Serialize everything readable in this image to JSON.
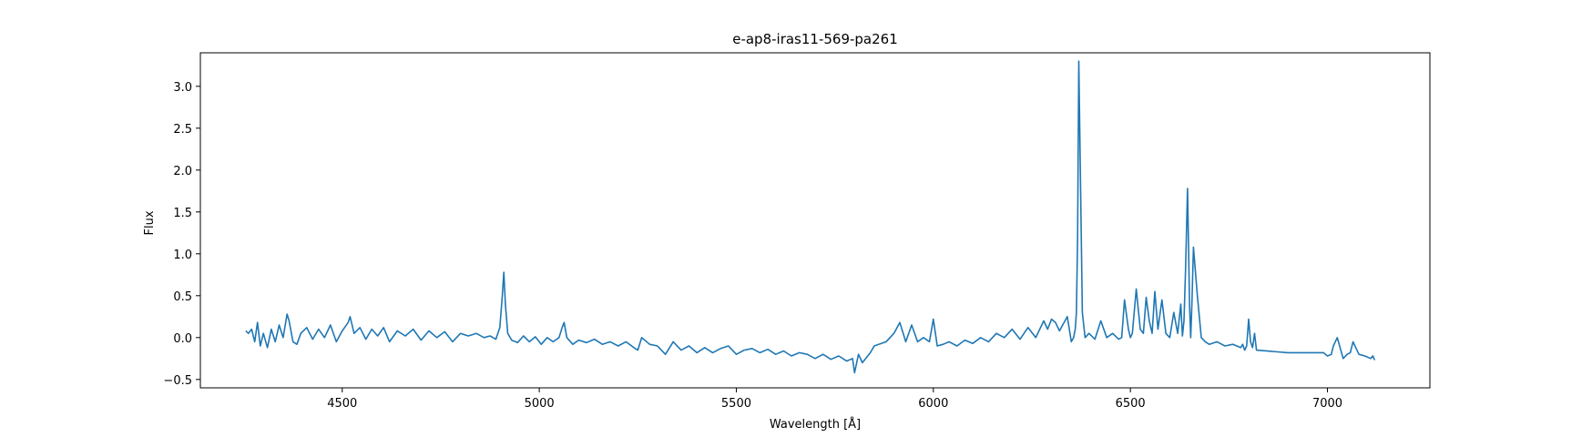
{
  "chart_data": {
    "type": "line",
    "title": "e-ap8-iras11-569-pa261",
    "xlabel": "Wavelength [Å]",
    "ylabel": "Flux",
    "xlim": [
      4140,
      7260
    ],
    "ylim": [
      -0.6,
      3.4
    ],
    "xticks": [
      4500,
      5000,
      5500,
      6000,
      6500,
      7000
    ],
    "xtick_labels": [
      "4500",
      "5000",
      "5500",
      "6000",
      "6500",
      "7000"
    ],
    "yticks": [
      -0.5,
      0.0,
      0.5,
      1.0,
      1.5,
      2.0,
      2.5,
      3.0
    ],
    "ytick_labels": [
      "−0.5",
      "0.0",
      "0.5",
      "1.0",
      "1.5",
      "2.0",
      "2.5",
      "3.0"
    ],
    "grid": false,
    "series": [
      {
        "color": "#1f77b4",
        "x": [
          4255,
          4262,
          4270,
          4278,
          4285,
          4292,
          4300,
          4310,
          4320,
          4330,
          4340,
          4350,
          4360,
          4365,
          4375,
          4385,
          4395,
          4410,
          4425,
          4440,
          4455,
          4470,
          4485,
          4500,
          4515,
          4520,
          4530,
          4545,
          4560,
          4575,
          4590,
          4605,
          4620,
          4640,
          4660,
          4680,
          4700,
          4720,
          4740,
          4760,
          4780,
          4800,
          4820,
          4840,
          4860,
          4875,
          4890,
          4900,
          4906,
          4910,
          4914,
          4920,
          4930,
          4945,
          4960,
          4975,
          4990,
          5005,
          5020,
          5035,
          5050,
          5058,
          5063,
          5070,
          5085,
          5100,
          5120,
          5140,
          5160,
          5180,
          5200,
          5220,
          5240,
          5250,
          5260,
          5280,
          5300,
          5320,
          5340,
          5360,
          5380,
          5400,
          5420,
          5440,
          5460,
          5480,
          5500,
          5520,
          5540,
          5560,
          5580,
          5600,
          5620,
          5640,
          5660,
          5680,
          5700,
          5720,
          5740,
          5760,
          5780,
          5795,
          5800,
          5810,
          5820,
          5840,
          5850,
          5880,
          5900,
          5915,
          5930,
          5945,
          5960,
          5975,
          5990,
          6000,
          6010,
          6025,
          6040,
          6060,
          6080,
          6100,
          6120,
          6140,
          6160,
          6180,
          6200,
          6220,
          6240,
          6260,
          6280,
          6290,
          6300,
          6310,
          6320,
          6340,
          6350,
          6356,
          6360,
          6363,
          6366,
          6369,
          6373,
          6378,
          6385,
          6395,
          6410,
          6425,
          6440,
          6455,
          6470,
          6478,
          6485,
          6495,
          6500,
          6505,
          6515,
          6525,
          6533,
          6540,
          6548,
          6555,
          6562,
          6570,
          6580,
          6590,
          6600,
          6610,
          6620,
          6628,
          6632,
          6636,
          6640,
          6645,
          6650,
          6653,
          6656,
          6660,
          6670,
          6680,
          6690,
          6700,
          6720,
          6740,
          6760,
          6780,
          6785,
          6790,
          6795,
          6800,
          6805,
          6810,
          6815,
          6820,
          6900,
          6990,
          7000,
          7010,
          7015,
          7025,
          7040,
          7050,
          7058,
          7065,
          7080,
          7095,
          7110,
          7115,
          7120
        ],
        "y": [
          0.08,
          0.05,
          0.1,
          -0.05,
          0.18,
          -0.1,
          0.05,
          -0.12,
          0.1,
          -0.05,
          0.15,
          0.0,
          0.28,
          0.2,
          -0.05,
          -0.08,
          0.05,
          0.12,
          -0.02,
          0.1,
          0.0,
          0.15,
          -0.05,
          0.08,
          0.18,
          0.25,
          0.05,
          0.12,
          -0.02,
          0.1,
          0.02,
          0.12,
          -0.05,
          0.08,
          0.02,
          0.1,
          -0.03,
          0.08,
          0.0,
          0.07,
          -0.05,
          0.05,
          0.02,
          0.05,
          0.0,
          0.02,
          -0.02,
          0.12,
          0.48,
          0.78,
          0.4,
          0.05,
          -0.03,
          -0.06,
          0.02,
          -0.05,
          0.01,
          -0.08,
          0.0,
          -0.05,
          0.0,
          0.12,
          0.18,
          0.0,
          -0.08,
          -0.03,
          -0.06,
          -0.02,
          -0.08,
          -0.05,
          -0.1,
          -0.05,
          -0.12,
          -0.15,
          0.0,
          -0.08,
          -0.1,
          -0.2,
          -0.05,
          -0.15,
          -0.1,
          -0.18,
          -0.12,
          -0.18,
          -0.13,
          -0.1,
          -0.2,
          -0.15,
          -0.13,
          -0.18,
          -0.14,
          -0.2,
          -0.16,
          -0.22,
          -0.18,
          -0.2,
          -0.25,
          -0.2,
          -0.26,
          -0.22,
          -0.28,
          -0.25,
          -0.42,
          -0.2,
          -0.3,
          -0.18,
          -0.1,
          -0.05,
          0.05,
          0.18,
          -0.05,
          0.15,
          -0.05,
          0.0,
          -0.05,
          0.22,
          -0.1,
          -0.08,
          -0.05,
          -0.1,
          -0.03,
          -0.07,
          0.0,
          -0.05,
          0.05,
          0.0,
          0.1,
          -0.02,
          0.12,
          0.0,
          0.2,
          0.1,
          0.22,
          0.18,
          0.08,
          0.25,
          -0.05,
          0.0,
          0.1,
          0.3,
          1.2,
          3.3,
          2.0,
          0.3,
          0.0,
          0.05,
          -0.02,
          0.2,
          0.0,
          0.05,
          -0.02,
          0.0,
          0.45,
          0.1,
          0.0,
          0.05,
          0.58,
          0.1,
          0.05,
          0.48,
          0.2,
          0.05,
          0.55,
          0.1,
          0.45,
          0.05,
          0.0,
          0.3,
          0.05,
          0.4,
          0.02,
          0.2,
          0.8,
          1.78,
          0.4,
          0.0,
          0.4,
          1.08,
          0.5,
          0.0,
          -0.05,
          -0.08,
          -0.05,
          -0.1,
          -0.08,
          -0.12,
          -0.08,
          -0.15,
          -0.1,
          0.22,
          -0.05,
          -0.12,
          0.05,
          -0.15,
          -0.18,
          -0.18,
          -0.22,
          -0.2,
          -0.1,
          0.0,
          -0.25,
          -0.2,
          -0.18,
          -0.05,
          -0.2,
          -0.22,
          -0.25,
          -0.22,
          -0.27
        ]
      }
    ]
  }
}
